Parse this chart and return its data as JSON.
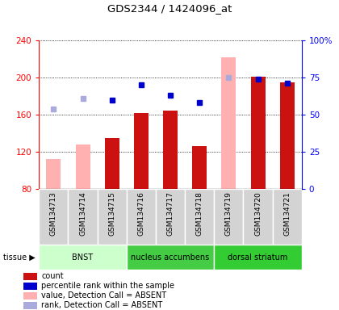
{
  "title": "GDS2344 / 1424096_at",
  "samples": [
    "GSM134713",
    "GSM134714",
    "GSM134715",
    "GSM134716",
    "GSM134717",
    "GSM134718",
    "GSM134719",
    "GSM134720",
    "GSM134721"
  ],
  "bar_values": [
    null,
    null,
    135,
    162,
    164,
    126,
    null,
    201,
    195
  ],
  "bar_absent_values": [
    112,
    128,
    null,
    null,
    null,
    null,
    222,
    null,
    null
  ],
  "rank_present": [
    null,
    null,
    60,
    70,
    63,
    58,
    null,
    74,
    71
  ],
  "rank_absent": [
    54,
    61,
    null,
    null,
    null,
    null,
    75,
    null,
    null
  ],
  "tissue_groups": [
    {
      "label": "BNST",
      "start": 0,
      "end": 3,
      "color": "#ccffcc"
    },
    {
      "label": "nucleus accumbens",
      "start": 3,
      "end": 6,
      "color": "#44dd44"
    },
    {
      "label": "dorsal striatum",
      "start": 6,
      "end": 9,
      "color": "#33ee33"
    }
  ],
  "ylim_left": [
    80,
    240
  ],
  "ylim_right": [
    0,
    100
  ],
  "yticks_left": [
    80,
    120,
    160,
    200,
    240
  ],
  "yticks_right": [
    0,
    25,
    50,
    75,
    100
  ],
  "bar_color_present": "#cc1111",
  "bar_color_absent": "#ffb0b0",
  "rank_color_present": "#0000cc",
  "rank_color_absent": "#aaaadd",
  "legend_items": [
    {
      "color": "#cc1111",
      "label": "count"
    },
    {
      "color": "#0000cc",
      "label": "percentile rank within the sample"
    },
    {
      "color": "#ffb0b0",
      "label": "value, Detection Call = ABSENT"
    },
    {
      "color": "#aaaadd",
      "label": "rank, Detection Call = ABSENT"
    }
  ]
}
